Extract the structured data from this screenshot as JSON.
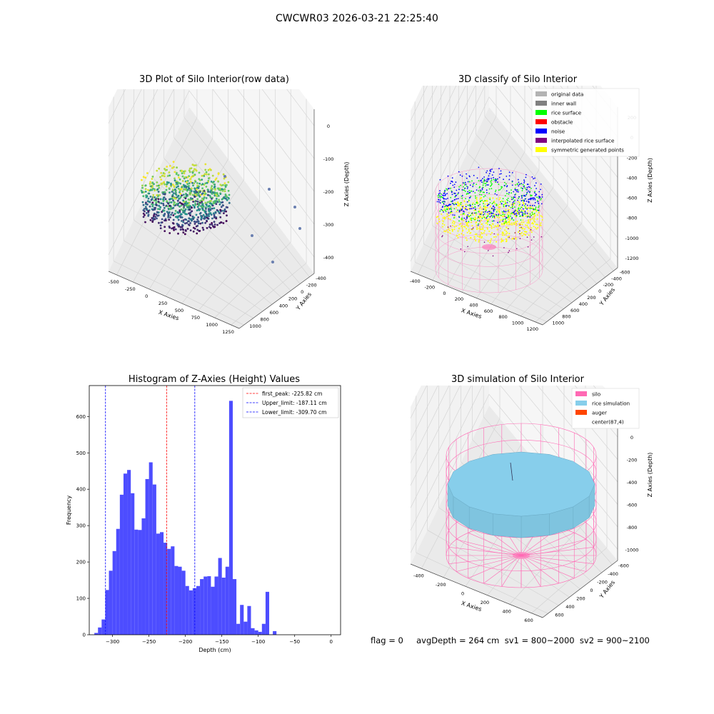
{
  "figure": {
    "suptitle": "CWCWR03 2026-03-21 22:25:40",
    "footer": "flag = 0     avgDepth = 264 cm  sv1 = 800~2000  sv2 = 900~2100"
  },
  "colors": {
    "original": "#b3b3b3",
    "inner_wall": "#808080",
    "rice_surface": "#00ff00",
    "obstacle": "#ff0000",
    "noise": "#0000ff",
    "interpolated": "#800080",
    "symmetric": "#ffff00",
    "silo": "#ff69b4",
    "rice_sim": "#87ceeb",
    "auger": "#ff4500",
    "hist": "#4d4dff"
  },
  "chart_data": [
    {
      "type": "scatter",
      "title": "3D Plot of Silo Interior(row data)",
      "xlabel": "X Axies",
      "ylabel": "Y Axies",
      "zlabel": "Z Axies (Depth)",
      "x_ticks": [
        "-500",
        "-250",
        "0",
        "250",
        "500",
        "750",
        "1000",
        "1250"
      ],
      "y_ticks": [
        "-400",
        "-200",
        "0",
        "200",
        "400",
        "600",
        "800",
        "1000"
      ],
      "z_ticks": [
        "0",
        "-100",
        "-200",
        "-300",
        "-400"
      ]
    },
    {
      "type": "scatter",
      "title": "3D classify of Silo Interior",
      "xlabel": "X Axies",
      "ylabel": "Y Axies",
      "zlabel": "Z Axies (Depth)",
      "x_ticks": [
        "-400",
        "-200",
        "0",
        "200",
        "400",
        "600",
        "800",
        "1000",
        "1200"
      ],
      "y_ticks": [
        "-600",
        "-400",
        "-200",
        "0",
        "200",
        "400",
        "600",
        "800",
        "1000"
      ],
      "z_ticks": [
        "200",
        "0",
        "-200",
        "-400",
        "-600",
        "-800",
        "-1000",
        "-1200"
      ],
      "z_partial": "00",
      "legend": [
        {
          "label": "original data",
          "color": "#b3b3b3"
        },
        {
          "label": "inner wall",
          "color": "#808080"
        },
        {
          "label": "rice surface",
          "color": "#00ff00"
        },
        {
          "label": "obstacle",
          "color": "#ff0000"
        },
        {
          "label": "noise",
          "color": "#0000ff"
        },
        {
          "label": "interpolated rice surface",
          "color": "#800080"
        },
        {
          "label": "symmetric generated points",
          "color": "#ffff00"
        }
      ]
    },
    {
      "type": "bar",
      "title": "Histogram of Z-Axies (Height) Values",
      "xlabel": "Depth (cm)",
      "ylabel": "Frequency",
      "xlim": [
        -332,
        13
      ],
      "ylim": [
        0,
        685
      ],
      "x_ticks": [
        -300,
        -250,
        -200,
        -150,
        -100,
        -50,
        0
      ],
      "y_ticks": [
        0,
        100,
        200,
        300,
        400,
        500,
        600
      ],
      "bin_start": -325,
      "bin_width": 5,
      "values": [
        5,
        20,
        42,
        123,
        176,
        230,
        291,
        385,
        443,
        453,
        389,
        289,
        288,
        320,
        428,
        474,
        413,
        278,
        282,
        253,
        236,
        243,
        189,
        187,
        176,
        134,
        122,
        128,
        134,
        153,
        160,
        161,
        132,
        160,
        211,
        157,
        187,
        643,
        153,
        30,
        82,
        36,
        79,
        18,
        12,
        8,
        30,
        118,
        1,
        10
      ],
      "vlines": [
        {
          "label": "first_peak: -225.82 cm",
          "x": -225.82,
          "color": "#ff0000"
        },
        {
          "label": "Upper_limit: -187.11 cm",
          "x": -187.11,
          "color": "#0000ff"
        },
        {
          "label": "Lower_limit: -309.70 cm",
          "x": -309.7,
          "color": "#0000ff"
        }
      ]
    },
    {
      "type": "scatter",
      "title": "3D simulation of Silo Interior",
      "xlabel": "X Axies",
      "ylabel": "Y Axies",
      "zlabel": "Z Axies (Depth)",
      "x_ticks": [
        "-400",
        "-200",
        "0",
        "200",
        "400",
        "600"
      ],
      "y_ticks": [
        "-600",
        "-400",
        "-200",
        "0",
        "200",
        "400",
        "600"
      ],
      "z_ticks": [
        "200",
        "0",
        "-200",
        "-400",
        "-600",
        "-800",
        "-1000"
      ],
      "legend": [
        {
          "label": "silo",
          "color": "#ff69b4"
        },
        {
          "label": "rice simulation",
          "color": "#87ceeb"
        },
        {
          "label": "auger",
          "color": "#ff4500"
        },
        {
          "label": "center(87,4)",
          "color": ""
        }
      ]
    }
  ]
}
